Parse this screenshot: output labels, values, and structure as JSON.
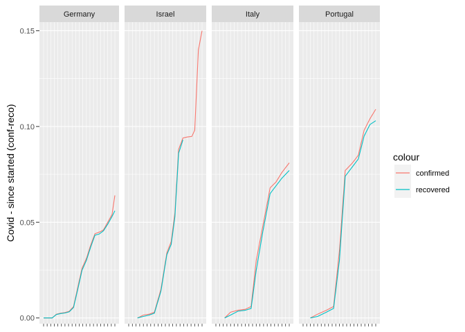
{
  "chart_data": {
    "type": "line",
    "ylabel": "Covid - since started (conf-reco)",
    "xlabel": "",
    "ylim": [
      -0.003,
      0.1545
    ],
    "yticks": [
      0.0,
      0.05,
      0.1,
      0.15
    ],
    "ytick_labels": [
      "0.00",
      "0.05",
      "0.10",
      "0.15"
    ],
    "grid": true,
    "legend": {
      "title": "colour",
      "placement": "right",
      "entries": [
        {
          "label": "confirmed",
          "color": "#F8766D"
        },
        {
          "label": "recovered",
          "color": "#00BFC4"
        }
      ]
    },
    "series_names": [
      "confirmed",
      "recovered"
    ],
    "series_colors": [
      "#F8766D",
      "#00BFC4"
    ],
    "x": [
      0,
      0.05,
      0.1,
      0.15,
      0.2,
      0.25,
      0.3,
      0.35,
      0.4,
      0.45,
      0.5,
      0.55,
      0.6,
      0.65,
      0.7,
      0.75,
      0.8,
      0.85,
      0.9,
      0.95,
      1.0
    ],
    "facets": [
      {
        "title": "Germany",
        "series": [
          {
            "name": "confirmed",
            "values": [
              0.0,
              0.0,
              0.0,
              0.002,
              0.0025,
              0.0028,
              0.0035,
              0.006,
              0.016,
              0.026,
              0.031,
              0.038,
              0.044,
              0.0448,
              0.046,
              0.05,
              0.054,
              0.064
            ]
          },
          {
            "name": "recovered",
            "values": [
              0.0,
              0.0,
              0.0,
              0.0018,
              0.0023,
              0.0026,
              0.0032,
              0.0055,
              0.015,
              0.025,
              0.03,
              0.037,
              0.0432,
              0.0438,
              0.0455,
              0.049,
              0.053,
              0.056
            ]
          }
        ],
        "x": [
          0,
          0.06,
          0.12,
          0.18,
          0.24,
          0.3,
          0.36,
          0.42,
          0.48,
          0.54,
          0.6,
          0.66,
          0.72,
          0.78,
          0.84,
          0.9,
          0.96,
          1.0
        ]
      },
      {
        "title": "Israel",
        "series": [
          {
            "name": "confirmed",
            "values": [
              0.0,
              0.0015,
              0.002,
              0.003,
              0.015,
              0.034,
              0.04,
              0.055,
              0.088,
              0.094,
              0.0945,
              0.0948,
              0.098,
              0.14,
              0.15
            ]
          },
          {
            "name": "recovered",
            "values": [
              0.0,
              0.0008,
              0.0015,
              0.0025,
              0.014,
              0.033,
              0.0385,
              0.053,
              0.086,
              0.093,
              null,
              null,
              null,
              null,
              null
            ]
          }
        ],
        "x": [
          0.12,
          0.2,
          0.28,
          0.35,
          0.44,
          0.52,
          0.58,
          0.63,
          0.68,
          0.74,
          0.8,
          0.86,
          0.9,
          0.95,
          1.0
        ]
      },
      {
        "title": "Italy",
        "series": [
          {
            "name": "confirmed",
            "values": [
              0.0,
              0.003,
              0.004,
              0.0045,
              0.006,
              0.03,
              0.048,
              0.068,
              0.071,
              0.076,
              0.081
            ]
          },
          {
            "name": "recovered",
            "values": [
              0.0,
              0.0015,
              0.0035,
              0.004,
              0.005,
              0.025,
              0.045,
              0.065,
              0.069,
              0.073,
              0.077
            ]
          }
        ],
        "x": [
          0.12,
          0.2,
          0.3,
          0.4,
          0.48,
          0.55,
          0.64,
          0.74,
          0.82,
          0.9,
          1.0
        ]
      },
      {
        "title": "Portugal",
        "series": [
          {
            "name": "confirmed",
            "values": [
              0.0,
              0.002,
              0.004,
              0.006,
              0.035,
              0.077,
              0.081,
              0.085,
              0.098,
              0.104,
              0.109
            ]
          },
          {
            "name": "recovered",
            "values": [
              0.0,
              0.0008,
              0.003,
              0.005,
              0.03,
              0.074,
              0.079,
              0.083,
              0.095,
              0.101,
              0.103
            ]
          }
        ],
        "x": [
          0.1,
          0.2,
          0.32,
          0.42,
          0.5,
          0.58,
          0.68,
          0.76,
          0.84,
          0.92,
          1.0
        ]
      }
    ]
  }
}
